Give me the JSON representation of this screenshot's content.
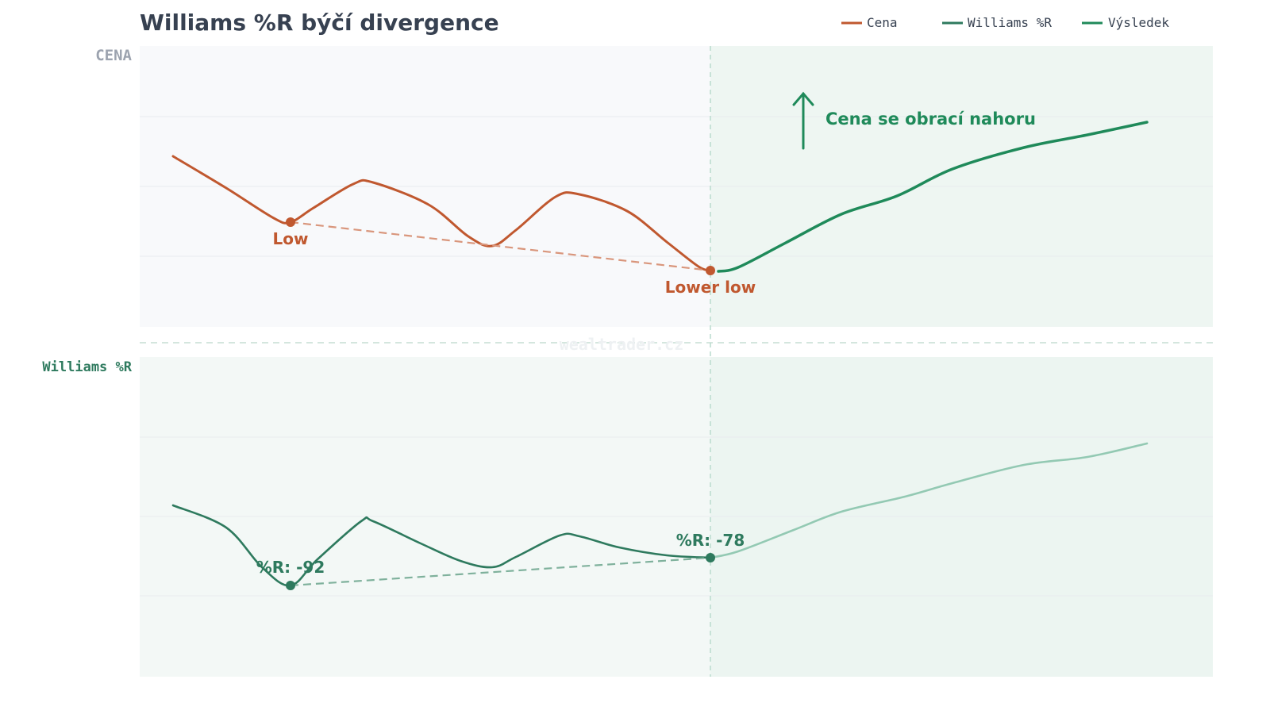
{
  "title": "Williams %R býčí divergence",
  "legend": [
    "Cena",
    "Williams %R",
    "Výsledek"
  ],
  "price_panel": {
    "label": "CENA",
    "low_label": "Low",
    "lower_low_label": "Lower low",
    "callout": "Cena se obrací nahoru"
  },
  "indicator_panel": {
    "label": "Williams %R",
    "first_low_label": "%R: -92",
    "second_low_label": "%R: -78"
  },
  "watermark": "wealtrader.cz"
}
